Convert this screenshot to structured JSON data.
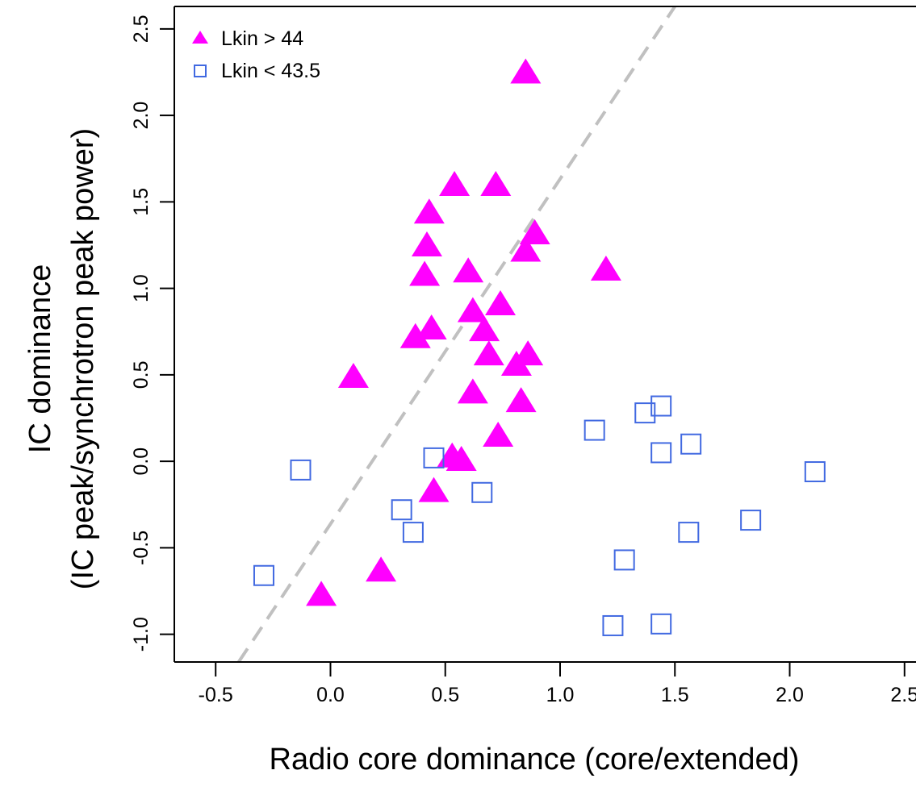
{
  "chart_data": {
    "type": "scatter",
    "title": "",
    "xlabel": "Radio core dominance (core/extended)",
    "ylabel_line1": "IC dominance",
    "ylabel_line2": "(IC peak/synchrotron peak power)",
    "xlim": [
      -0.68,
      2.55
    ],
    "ylim": [
      -1.16,
      2.63
    ],
    "x_ticks": [
      -0.5,
      0.0,
      0.5,
      1.0,
      1.5,
      2.0,
      2.5
    ],
    "x_tick_labels": [
      "-0.5",
      "0.0",
      "0.5",
      "1.0",
      "1.5",
      "2.0",
      "2.5"
    ],
    "y_ticks": [
      -1.0,
      -0.5,
      0.0,
      0.5,
      1.0,
      1.5,
      2.0,
      2.5
    ],
    "y_tick_labels": [
      "-1.0",
      "-0.5",
      "0.0",
      "0.5",
      "1.0",
      "1.5",
      "2.0",
      "2.5"
    ],
    "grid": false,
    "legend_position": "top-left",
    "reference_line": {
      "style": "dashed",
      "color": "#c0c0c0",
      "points": [
        [
          -0.4,
          -1.16
        ],
        [
          1.5,
          2.63
        ]
      ]
    },
    "series": [
      {
        "name": "Lkin > 44",
        "marker": "filled-triangle",
        "color": "#ff00ff",
        "points": [
          [
            0.85,
            2.25
          ],
          [
            0.54,
            1.6
          ],
          [
            0.72,
            1.6
          ],
          [
            0.43,
            1.44
          ],
          [
            0.89,
            1.32
          ],
          [
            0.42,
            1.25
          ],
          [
            0.85,
            1.22
          ],
          [
            0.41,
            1.08
          ],
          [
            0.6,
            1.1
          ],
          [
            1.2,
            1.11
          ],
          [
            0.74,
            0.91
          ],
          [
            0.62,
            0.87
          ],
          [
            0.67,
            0.76
          ],
          [
            0.37,
            0.72
          ],
          [
            0.44,
            0.77
          ],
          [
            0.69,
            0.62
          ],
          [
            0.86,
            0.62
          ],
          [
            0.81,
            0.56
          ],
          [
            0.1,
            0.49
          ],
          [
            0.62,
            0.4
          ],
          [
            0.83,
            0.35
          ],
          [
            0.73,
            0.15
          ],
          [
            0.53,
            0.03
          ],
          [
            0.57,
            0.01
          ],
          [
            0.45,
            -0.17
          ],
          [
            0.22,
            -0.63
          ],
          [
            -0.04,
            -0.77
          ]
        ]
      },
      {
        "name": "Lkin < 43.5",
        "marker": "open-square",
        "color": "#4169e1",
        "points": [
          [
            1.44,
            0.32
          ],
          [
            1.37,
            0.28
          ],
          [
            1.15,
            0.18
          ],
          [
            1.57,
            0.1
          ],
          [
            1.44,
            0.05
          ],
          [
            0.45,
            0.02
          ],
          [
            -0.13,
            -0.05
          ],
          [
            2.11,
            -0.06
          ],
          [
            0.66,
            -0.18
          ],
          [
            0.31,
            -0.28
          ],
          [
            0.36,
            -0.41
          ],
          [
            1.56,
            -0.41
          ],
          [
            1.83,
            -0.34
          ],
          [
            1.28,
            -0.57
          ],
          [
            -0.29,
            -0.66
          ],
          [
            1.23,
            -0.95
          ],
          [
            1.44,
            -0.94
          ]
        ]
      }
    ]
  }
}
